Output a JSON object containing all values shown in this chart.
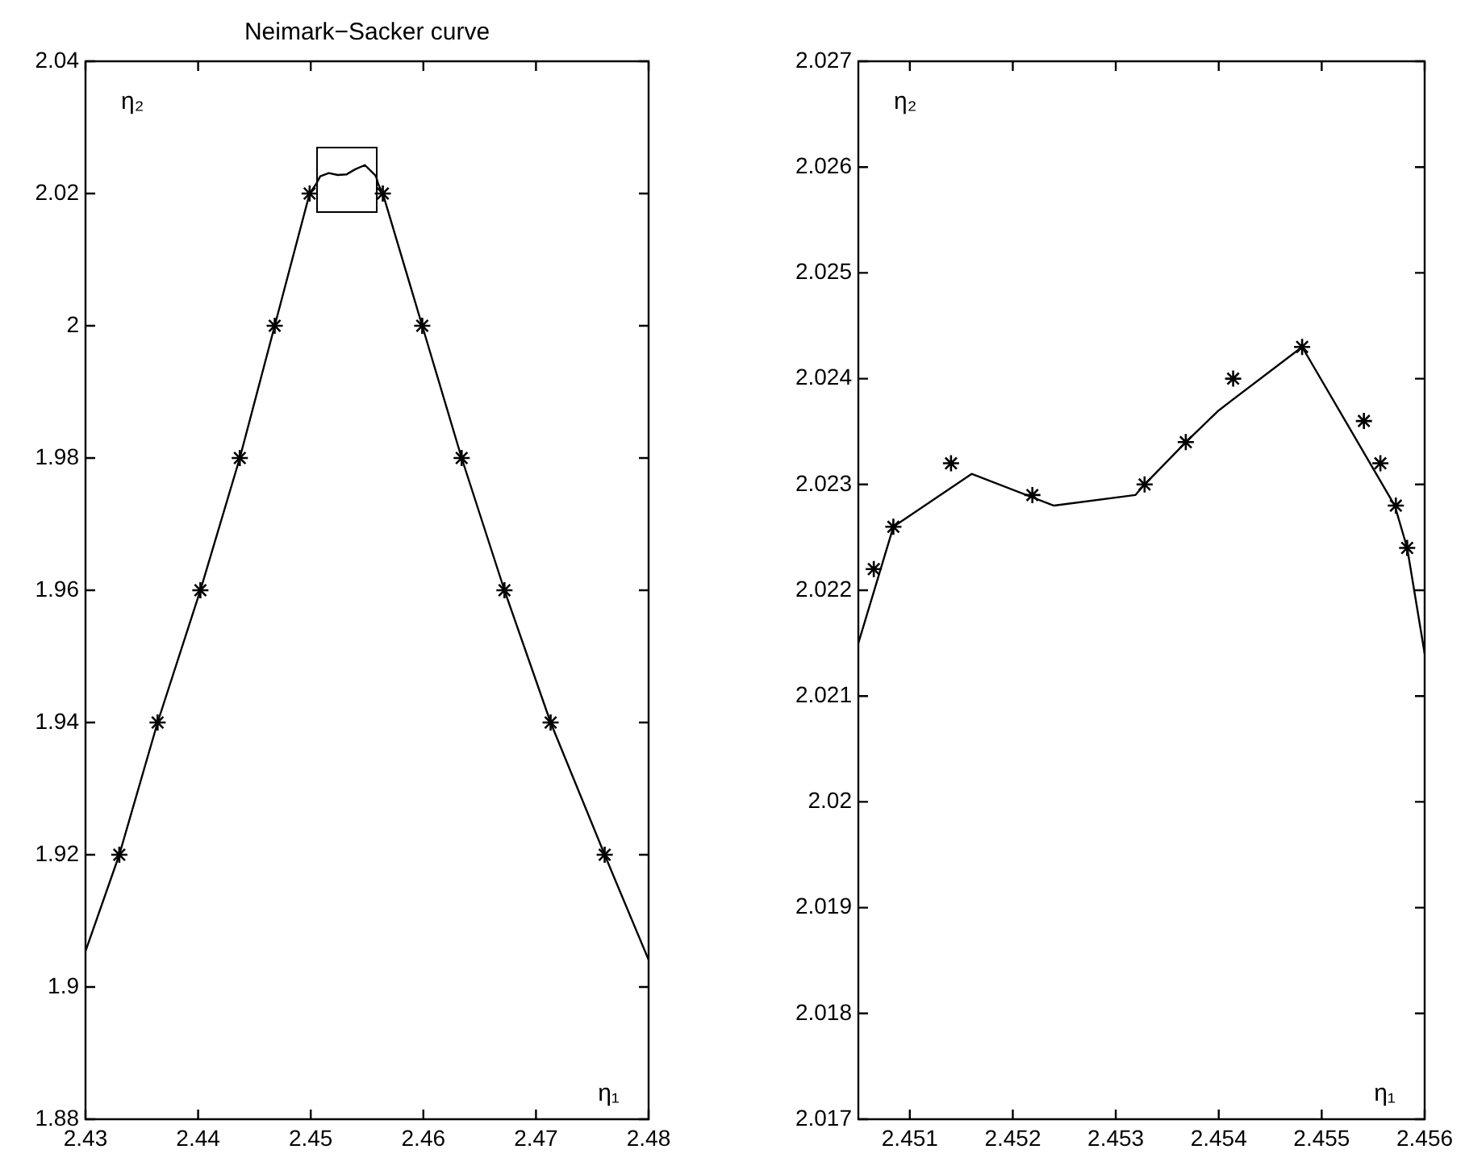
{
  "chart_data": [
    {
      "type": "line",
      "title": "Neimark−Sacker curve",
      "xlabel": "η₁",
      "ylabel": "η₂",
      "xlim": [
        2.43,
        2.48
      ],
      "ylim": [
        1.88,
        2.04
      ],
      "xticks": [
        2.43,
        2.44,
        2.45,
        2.46,
        2.47,
        2.48
      ],
      "yticks": [
        1.88,
        1.9,
        1.92,
        1.94,
        1.96,
        1.98,
        2,
        2.02,
        2.04
      ],
      "series": [
        {
          "type": "line",
          "color": "#000000",
          "marker": "none",
          "x": [
            2.43,
            2.433,
            2.4364,
            2.4402,
            2.4437,
            2.4468,
            2.4499,
            2.4505,
            2.45084,
            2.4516,
            2.4524,
            2.45319,
            2.45328,
            2.45368,
            2.454,
            2.45481,
            2.45571,
            2.45583,
            2.456,
            2.4564,
            2.4599,
            2.4634,
            2.4672,
            2.4713,
            2.4761,
            2.48
          ],
          "values": [
            1.9054,
            1.92,
            1.94,
            1.96,
            1.98,
            2.0,
            2.02,
            2.0215,
            2.0226,
            2.0231,
            2.0228,
            2.0229,
            2.023,
            2.0234,
            2.0237,
            2.0243,
            2.0228,
            2.0224,
            2.0214,
            2.02,
            2.0,
            1.98,
            1.96,
            1.94,
            1.92,
            1.9041
          ]
        },
        {
          "type": "scatter",
          "color": "#000000",
          "marker": "cross",
          "x": [
            2.433,
            2.4364,
            2.4402,
            2.4437,
            2.4468,
            2.4499,
            2.4564,
            2.4599,
            2.4634,
            2.4672,
            2.4713,
            2.4761
          ],
          "values": [
            1.92,
            1.94,
            1.96,
            1.98,
            2.0,
            2.02,
            2.02,
            2.0,
            1.98,
            1.96,
            1.94,
            1.92
          ]
        }
      ]
    },
    {
      "type": "line",
      "xlabel": "η₁",
      "ylabel": "η₂",
      "xlim": [
        2.4505,
        2.456
      ],
      "ylim": [
        2.017,
        2.027
      ],
      "xticks": [
        2.451,
        2.452,
        2.453,
        2.454,
        2.455,
        2.456
      ],
      "yticks": [
        2.017,
        2.018,
        2.019,
        2.02,
        2.021,
        2.022,
        2.023,
        2.024,
        2.025,
        2.026,
        2.027
      ],
      "series": [
        {
          "type": "line",
          "color": "#000000",
          "marker": "none",
          "x": [
            2.4505,
            2.45084,
            2.4516,
            2.4524,
            2.45319,
            2.45328,
            2.45368,
            2.454,
            2.45481,
            2.45571,
            2.45583,
            2.456
          ],
          "values": [
            2.0215,
            2.0226,
            2.0231,
            2.0228,
            2.0229,
            2.023,
            2.0234,
            2.0237,
            2.0243,
            2.0228,
            2.0224,
            2.0214
          ]
        },
        {
          "type": "scatter",
          "color": "#000000",
          "marker": "cross",
          "x": [
            2.45065,
            2.45084,
            2.4514,
            2.45219,
            2.45328,
            2.45368,
            2.45414,
            2.45481,
            2.45541,
            2.45557,
            2.45572,
            2.45583
          ],
          "values": [
            2.0222,
            2.0226,
            2.0232,
            2.0229,
            2.023,
            2.0234,
            2.024,
            2.0243,
            2.0236,
            2.0232,
            2.0228,
            2.0224
          ]
        }
      ]
    }
  ]
}
